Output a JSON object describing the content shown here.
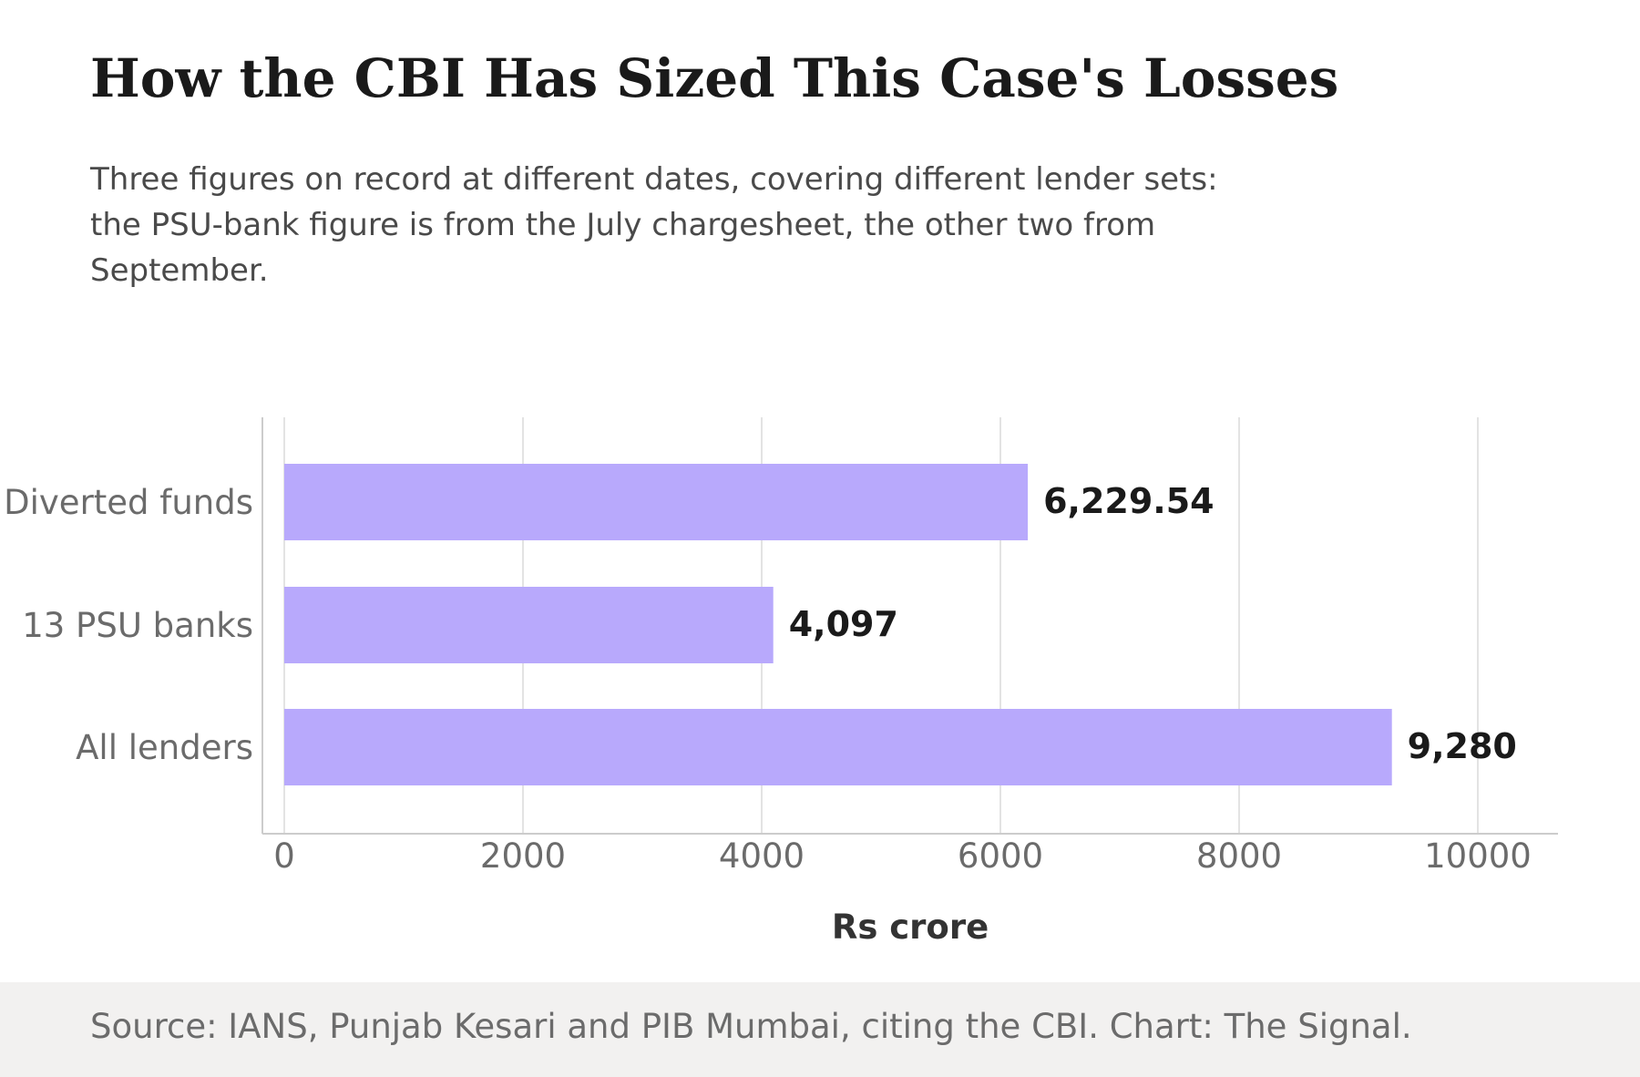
{
  "title": "How the CBI Has Sized This Case's Losses",
  "subtitle": "Three figures on record at different dates, covering different lender sets: the PSU-bank figure is from the July chargesheet, the other two from September.",
  "source": "Source: IANS, Punjab Kesari and PIB Mumbai, citing the CBI. Chart: The Signal.",
  "colors": {
    "bar": "#b8a9fc",
    "grid": "#e3e3e3",
    "axis": "#cccccc",
    "tick_text": "#6b6b6b",
    "value_text": "#1a1a1a",
    "footer_bg": "#f2f1f0"
  },
  "chart_data": {
    "type": "bar",
    "orientation": "horizontal",
    "categories": [
      "Diverted funds",
      "13 PSU banks",
      "All lenders"
    ],
    "values": [
      6229.54,
      4097,
      9280
    ],
    "value_labels": [
      "6,229.54",
      "4,097",
      "9,280"
    ],
    "xlabel": "Rs crore",
    "ylabel": "",
    "xlim": [
      0,
      10000
    ],
    "xticks": [
      0,
      2000,
      4000,
      6000,
      8000,
      10000
    ],
    "xtick_labels": [
      "0",
      "2000",
      "4000",
      "6000",
      "8000",
      "10000"
    ],
    "grid": true
  }
}
